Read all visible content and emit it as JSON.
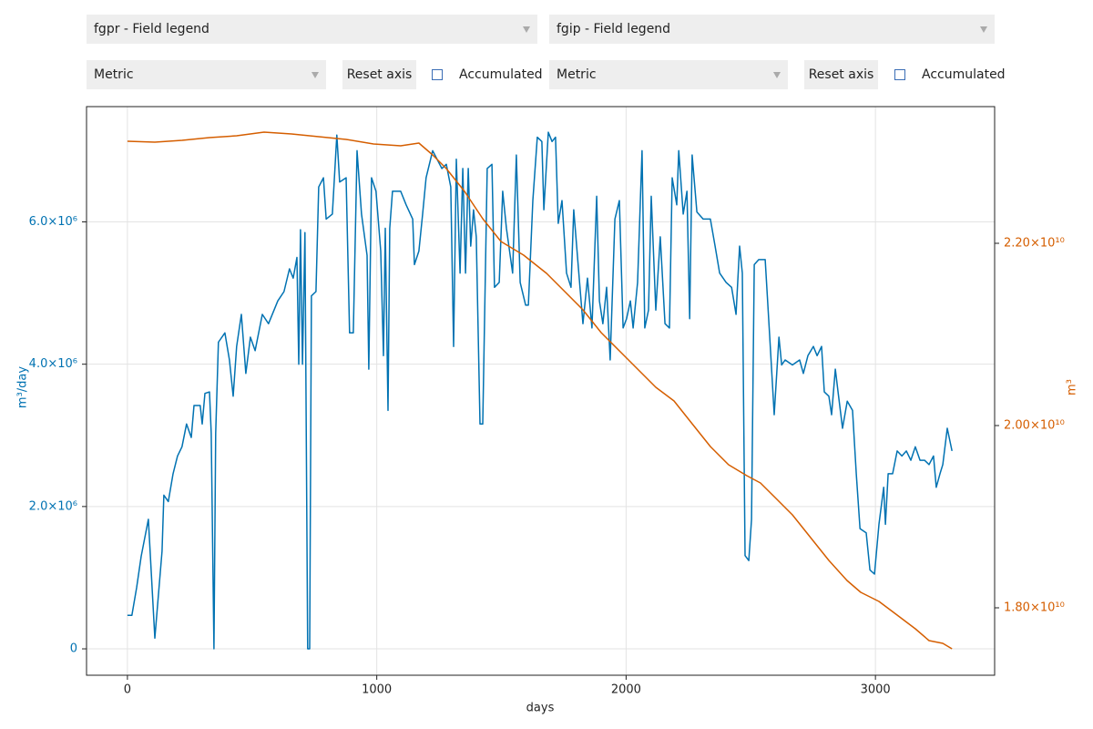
{
  "controls": {
    "left": {
      "field_select": "fgpr - Field legend",
      "unit_select": "Metric",
      "reset_button": "Reset axis",
      "accumulated_label": "Accumulated"
    },
    "right": {
      "field_select": "fgip - Field legend",
      "unit_select": "Metric",
      "reset_button": "Reset axis",
      "accumulated_label": "Accumulated"
    }
  },
  "chart_data": {
    "type": "line",
    "xlabel": "days",
    "ylabel": "m³/day",
    "y2label": "m³",
    "xlim": [
      -164,
      3478
    ],
    "ylim": [
      -371000,
      7620000
    ],
    "y2lim": [
      17260000000,
      23500000000
    ],
    "xticks": [
      0,
      1000,
      2000,
      3000
    ],
    "yticks": [
      0,
      {
        "value": 2000000,
        "label": "2.0×10⁶"
      },
      {
        "value": 4000000,
        "label": "4.0×10⁶"
      },
      {
        "value": 6000000,
        "label": "6.0×10⁶"
      }
    ],
    "y2ticks": [
      {
        "value": 18000000000,
        "label": "1.80×10¹⁰"
      },
      {
        "value": 20000000000,
        "label": "2.00×10¹⁰"
      },
      {
        "value": 22000000000,
        "label": "2.20×10¹⁰"
      }
    ],
    "grid": true,
    "series": [
      {
        "color": "#0072b2",
        "axis": "y",
        "x": [
          0,
          18,
          37,
          55,
          84,
          110,
          139,
          146,
          164,
          183,
          201,
          219,
          237,
          256,
          267,
          292,
          300,
          311,
          329,
          336,
          347,
          354,
          365,
          391,
          409,
          424,
          438,
          457,
          475,
          493,
          512,
          541,
          566,
          603,
          628,
          650,
          665,
          680,
          687,
          694,
          702,
          712,
          723,
          731,
          738,
          756,
          767,
          786,
          797,
          822,
          840,
          851,
          877,
          891,
          906,
          921,
          939,
          961,
          968,
          979,
          997,
          1016,
          1027,
          1034,
          1045,
          1052,
          1063,
          1096,
          1118,
          1144,
          1151,
          1169,
          1184,
          1198,
          1224,
          1242,
          1261,
          1279,
          1297,
          1308,
          1319,
          1334,
          1345,
          1356,
          1367,
          1377,
          1388,
          1399,
          1414,
          1425,
          1443,
          1462,
          1472,
          1491,
          1505,
          1520,
          1545,
          1560,
          1575,
          1597,
          1608,
          1626,
          1644,
          1662,
          1670,
          1688,
          1703,
          1717,
          1728,
          1743,
          1761,
          1779,
          1790,
          1809,
          1827,
          1845,
          1863,
          1882,
          1893,
          1907,
          1922,
          1936,
          1955,
          1973,
          1988,
          2002,
          2017,
          2028,
          2046,
          2064,
          2075,
          2090,
          2101,
          2119,
          2137,
          2156,
          2174,
          2185,
          2203,
          2211,
          2229,
          2244,
          2255,
          2265,
          2284,
          2309,
          2338,
          2357,
          2375,
          2401,
          2423,
          2441,
          2455,
          2466,
          2477,
          2492,
          2503,
          2514,
          2532,
          2558,
          2576,
          2594,
          2613,
          2624,
          2638,
          2667,
          2696,
          2711,
          2729,
          2751,
          2766,
          2784,
          2795,
          2813,
          2824,
          2839,
          2850,
          2868,
          2887,
          2908,
          2923,
          2938,
          2963,
          2978,
          2996,
          3014,
          3033,
          3040,
          3051,
          3069,
          3087,
          3106,
          3124,
          3142,
          3160,
          3179,
          3197,
          3215,
          3233,
          3244,
          3259,
          3270,
          3288,
          3307
        ],
        "values": [
          470000,
          470000,
          860000,
          1300000,
          1820000,
          150000,
          1370000,
          2160000,
          2070000,
          2460000,
          2710000,
          2840000,
          3160000,
          2970000,
          3420000,
          3420000,
          3160000,
          3590000,
          3610000,
          3030000,
          0,
          3030000,
          4310000,
          4440000,
          4060000,
          3550000,
          4250000,
          4700000,
          3870000,
          4380000,
          4190000,
          4700000,
          4570000,
          4890000,
          5020000,
          5340000,
          5210000,
          5500000,
          4000000,
          5890000,
          4000000,
          5850000,
          0,
          0,
          4960000,
          5020000,
          6490000,
          6620000,
          6040000,
          6110000,
          7220000,
          6560000,
          6620000,
          4440000,
          4440000,
          7000000,
          6110000,
          5530000,
          3930000,
          6620000,
          6430000,
          5590000,
          4120000,
          5910000,
          3350000,
          5910000,
          6430000,
          6430000,
          6240000,
          6040000,
          5400000,
          5590000,
          6110000,
          6620000,
          7000000,
          6880000,
          6750000,
          6810000,
          6490000,
          4250000,
          6880000,
          5280000,
          6750000,
          5280000,
          6750000,
          5660000,
          6170000,
          5790000,
          3160000,
          3160000,
          6750000,
          6810000,
          5080000,
          5150000,
          6430000,
          5910000,
          5280000,
          6940000,
          5150000,
          4830000,
          4830000,
          6300000,
          7190000,
          7130000,
          6170000,
          7260000,
          7130000,
          7190000,
          5980000,
          6300000,
          5280000,
          5080000,
          6170000,
          5340000,
          4570000,
          5210000,
          4510000,
          6360000,
          4890000,
          4570000,
          5080000,
          4060000,
          6040000,
          6300000,
          4510000,
          4640000,
          4890000,
          4510000,
          5150000,
          7000000,
          4510000,
          4760000,
          6360000,
          4760000,
          5790000,
          4570000,
          4510000,
          6620000,
          6240000,
          7000000,
          6110000,
          6430000,
          4640000,
          6940000,
          6140000,
          6040000,
          6040000,
          5660000,
          5280000,
          5150000,
          5080000,
          4700000,
          5660000,
          5280000,
          1310000,
          1240000,
          1820000,
          5400000,
          5470000,
          5470000,
          4380000,
          3290000,
          4380000,
          3990000,
          4060000,
          3990000,
          4060000,
          3870000,
          4120000,
          4250000,
          4120000,
          4250000,
          3610000,
          3550000,
          3290000,
          3930000,
          3610000,
          3100000,
          3480000,
          3350000,
          2460000,
          1690000,
          1630000,
          1110000,
          1050000,
          1750000,
          2270000,
          1750000,
          2460000,
          2460000,
          2780000,
          2710000,
          2780000,
          2650000,
          2840000,
          2650000,
          2650000,
          2590000,
          2710000,
          2270000,
          2460000,
          2590000,
          3100000,
          2780000
        ]
      },
      {
        "color": "#d55e00",
        "axis": "y2",
        "x": [
          0,
          110,
          219,
          329,
          438,
          548,
          658,
          767,
          877,
          987,
          1096,
          1169,
          1224,
          1279,
          1352,
          1425,
          1498,
          1589,
          1681,
          1754,
          1827,
          1900,
          1973,
          2046,
          2119,
          2192,
          2265,
          2338,
          2411,
          2484,
          2539,
          2594,
          2667,
          2740,
          2813,
          2886,
          2941,
          3014,
          3087,
          3160,
          3215,
          3270,
          3307
        ],
        "values": [
          23120000000,
          23110000000,
          23130000000,
          23160000000,
          23180000000,
          23220000000,
          23200000000,
          23170000000,
          23140000000,
          23090000000,
          23070000000,
          23100000000,
          22970000000,
          22820000000,
          22570000000,
          22270000000,
          22020000000,
          21870000000,
          21670000000,
          21470000000,
          21270000000,
          21020000000,
          20820000000,
          20620000000,
          20420000000,
          20270000000,
          20020000000,
          19770000000,
          19570000000,
          19450000000,
          19370000000,
          19220000000,
          19020000000,
          18770000000,
          18520000000,
          18300000000,
          18170000000,
          18070000000,
          17920000000,
          17770000000,
          17640000000,
          17610000000,
          17550000000
        ]
      }
    ]
  }
}
